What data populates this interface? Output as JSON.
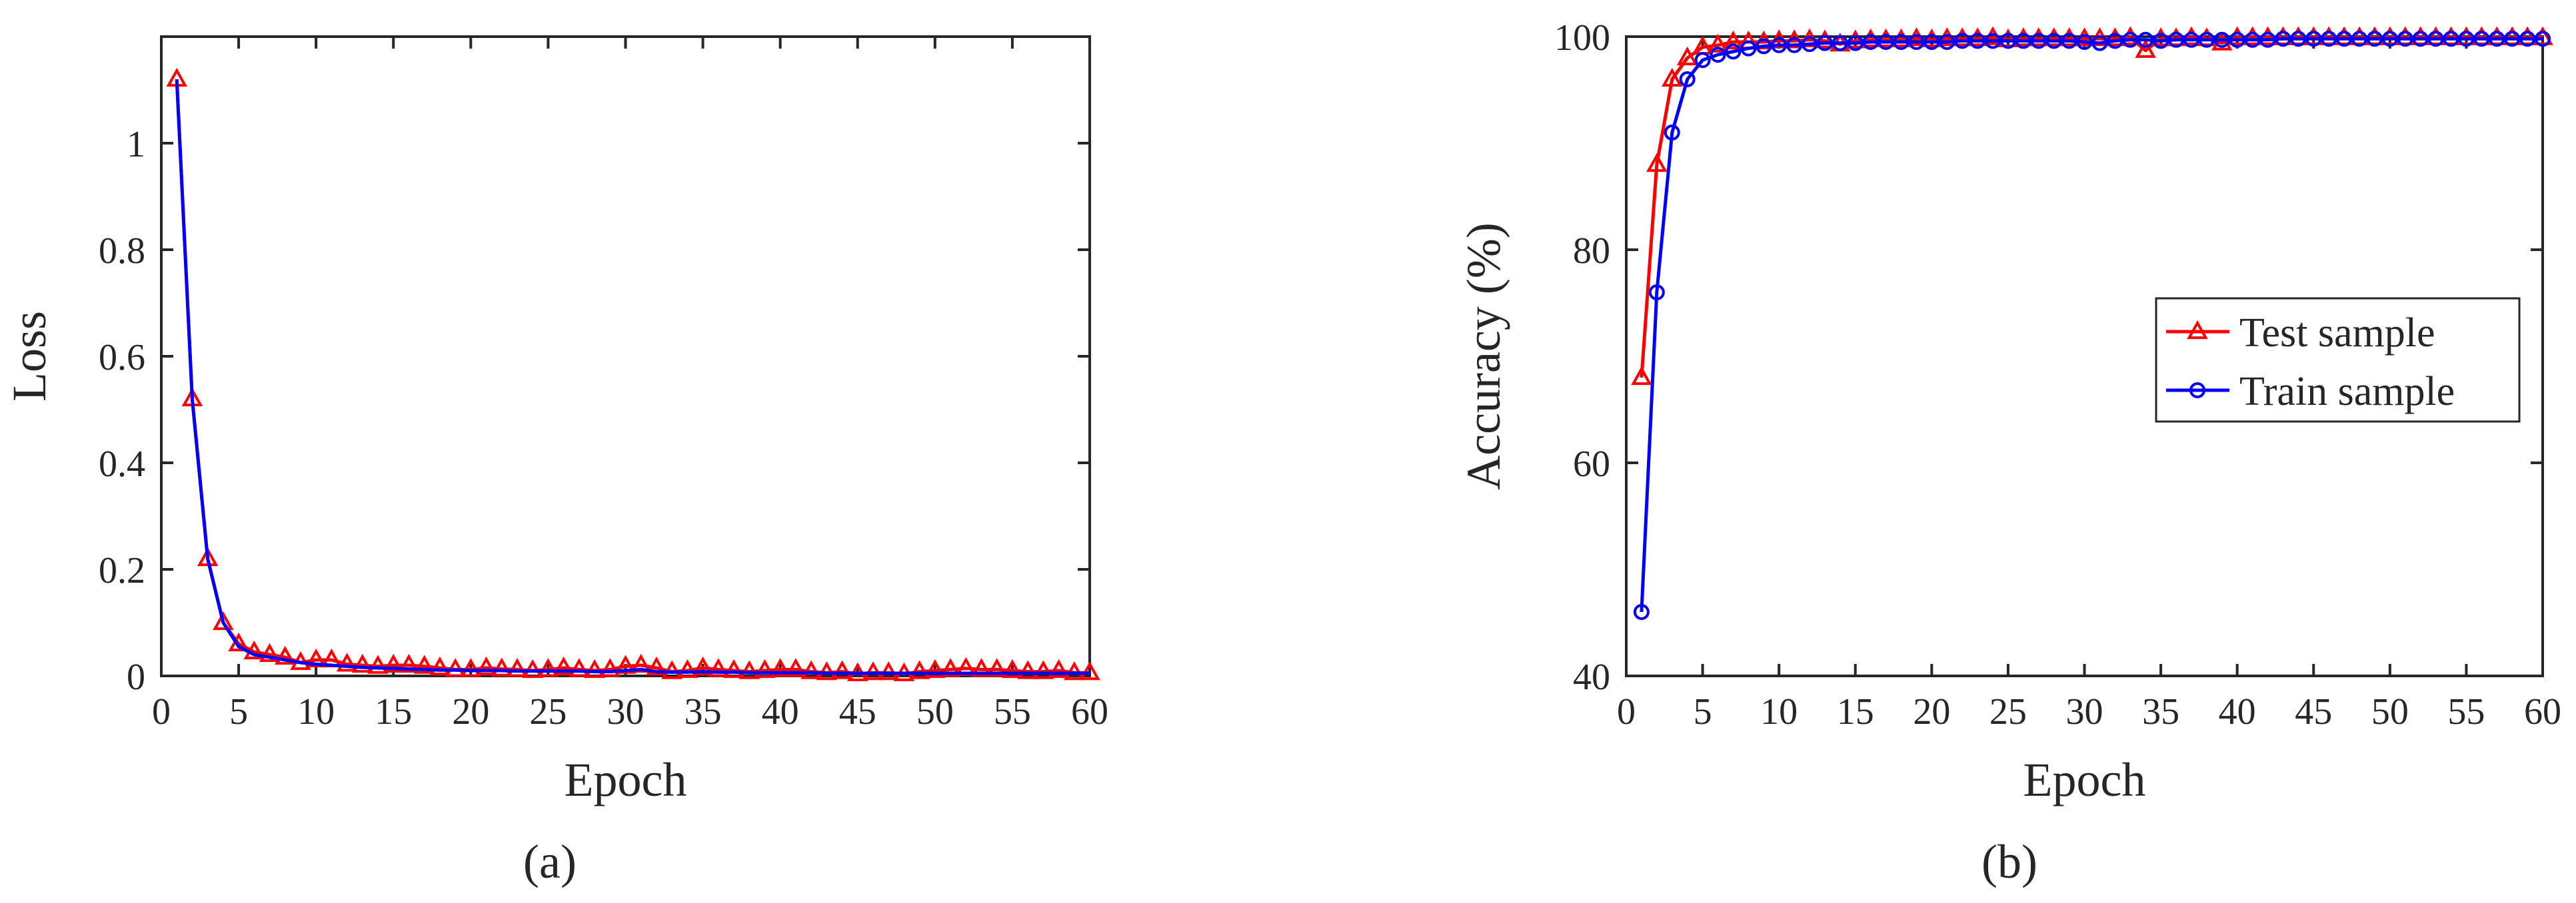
{
  "figure": {
    "panels": [
      "a",
      "b"
    ],
    "captions": [
      "(a)",
      "(b)"
    ]
  },
  "chart_data": [
    {
      "type": "line",
      "caption": "(a)",
      "xlabel": "Epoch",
      "ylabel": "Loss",
      "xlim": [
        0,
        60
      ],
      "ylim": [
        0,
        1.2
      ],
      "xticks": [
        0,
        5,
        10,
        15,
        20,
        25,
        30,
        35,
        40,
        45,
        50,
        55,
        60
      ],
      "yticks": [
        0,
        0.2,
        0.4,
        0.6,
        0.8,
        1
      ],
      "ytick_labels": [
        "0",
        "0.2",
        "0.4",
        "0.6",
        "0.8",
        "1"
      ],
      "grid": false,
      "series": [
        {
          "name": "Test sample",
          "color": "#ff0000",
          "marker": "triangle",
          "x": [
            1,
            2,
            3,
            4,
            5,
            6,
            7,
            8,
            9,
            10,
            11,
            12,
            13,
            14,
            15,
            16,
            17,
            18,
            19,
            20,
            21,
            22,
            23,
            24,
            25,
            26,
            27,
            28,
            29,
            30,
            31,
            32,
            33,
            34,
            35,
            36,
            37,
            38,
            39,
            40,
            41,
            42,
            43,
            44,
            45,
            46,
            47,
            48,
            49,
            50,
            51,
            52,
            53,
            54,
            55,
            56,
            57,
            58,
            59,
            60
          ],
          "values": [
            1.12,
            0.52,
            0.22,
            0.1,
            0.06,
            0.045,
            0.04,
            0.035,
            0.025,
            0.03,
            0.03,
            0.022,
            0.02,
            0.018,
            0.02,
            0.02,
            0.018,
            0.015,
            0.012,
            0.012,
            0.015,
            0.013,
            0.012,
            0.01,
            0.012,
            0.015,
            0.012,
            0.01,
            0.012,
            0.018,
            0.02,
            0.015,
            0.008,
            0.01,
            0.015,
            0.012,
            0.01,
            0.008,
            0.01,
            0.012,
            0.012,
            0.008,
            0.006,
            0.008,
            0.004,
            0.006,
            0.006,
            0.004,
            0.008,
            0.01,
            0.012,
            0.014,
            0.012,
            0.012,
            0.01,
            0.008,
            0.008,
            0.01,
            0.006,
            0.006
          ]
        },
        {
          "name": "Train sample",
          "color": "#0000ff",
          "marker": "none",
          "x": [
            1,
            2,
            3,
            4,
            5,
            6,
            7,
            8,
            9,
            10,
            11,
            12,
            13,
            14,
            15,
            16,
            17,
            18,
            19,
            20,
            21,
            22,
            23,
            24,
            25,
            26,
            27,
            28,
            29,
            30,
            31,
            32,
            33,
            34,
            35,
            36,
            37,
            38,
            39,
            40,
            41,
            42,
            43,
            44,
            45,
            46,
            47,
            48,
            49,
            50,
            51,
            52,
            53,
            54,
            55,
            56,
            57,
            58,
            59,
            60
          ],
          "values": [
            1.12,
            0.52,
            0.22,
            0.1,
            0.055,
            0.04,
            0.035,
            0.03,
            0.025,
            0.022,
            0.02,
            0.018,
            0.016,
            0.015,
            0.014,
            0.013,
            0.012,
            0.011,
            0.011,
            0.01,
            0.01,
            0.01,
            0.009,
            0.009,
            0.009,
            0.009,
            0.009,
            0.008,
            0.008,
            0.01,
            0.012,
            0.008,
            0.007,
            0.007,
            0.008,
            0.007,
            0.007,
            0.006,
            0.006,
            0.006,
            0.006,
            0.006,
            0.005,
            0.005,
            0.005,
            0.005,
            0.005,
            0.005,
            0.005,
            0.005,
            0.005,
            0.005,
            0.005,
            0.005,
            0.005,
            0.005,
            0.005,
            0.005,
            0.005,
            0.005
          ]
        }
      ]
    },
    {
      "type": "line",
      "caption": "(b)",
      "xlabel": "Epoch",
      "ylabel": "Accuracy (%)",
      "xlim": [
        0,
        60
      ],
      "ylim": [
        40,
        100
      ],
      "xticks": [
        0,
        5,
        10,
        15,
        20,
        25,
        30,
        35,
        40,
        45,
        50,
        55,
        60
      ],
      "yticks": [
        40,
        60,
        80,
        100
      ],
      "ytick_labels": [
        "40",
        "60",
        "80",
        "100"
      ],
      "grid": false,
      "legend": {
        "placement": "center-right"
      },
      "series": [
        {
          "name": "Test sample",
          "color": "#ff0000",
          "marker": "triangle",
          "x": [
            1,
            2,
            3,
            4,
            5,
            6,
            7,
            8,
            9,
            10,
            11,
            12,
            13,
            14,
            15,
            16,
            17,
            18,
            19,
            20,
            21,
            22,
            23,
            24,
            25,
            26,
            27,
            28,
            29,
            30,
            31,
            32,
            33,
            34,
            35,
            36,
            37,
            38,
            39,
            40,
            41,
            42,
            43,
            44,
            45,
            46,
            47,
            48,
            49,
            50,
            51,
            52,
            53,
            54,
            55,
            56,
            57,
            58,
            59,
            60
          ],
          "values": [
            68,
            88,
            96,
            98,
            99,
            99.2,
            99.5,
            99.5,
            99.5,
            99.6,
            99.6,
            99.7,
            99.6,
            99.3,
            99.6,
            99.7,
            99.7,
            99.7,
            99.8,
            99.7,
            99.8,
            99.8,
            99.8,
            99.9,
            99.7,
            99.8,
            99.8,
            99.8,
            99.8,
            99.8,
            99.8,
            99.8,
            99.9,
            98.7,
            99.8,
            99.8,
            99.9,
            99.8,
            99.4,
            99.9,
            99.9,
            99.9,
            99.9,
            99.9,
            99.9,
            99.9,
            99.9,
            99.9,
            99.9,
            99.9,
            99.9,
            99.9,
            99.9,
            99.9,
            99.9,
            99.9,
            99.9,
            99.9,
            99.9,
            99.9
          ]
        },
        {
          "name": "Train sample",
          "color": "#0000ff",
          "marker": "circle",
          "x": [
            1,
            2,
            3,
            4,
            5,
            6,
            7,
            8,
            9,
            10,
            11,
            12,
            13,
            14,
            15,
            16,
            17,
            18,
            19,
            20,
            21,
            22,
            23,
            24,
            25,
            26,
            27,
            28,
            29,
            30,
            31,
            32,
            33,
            34,
            35,
            36,
            37,
            38,
            39,
            40,
            41,
            42,
            43,
            44,
            45,
            46,
            47,
            48,
            49,
            50,
            51,
            52,
            53,
            54,
            55,
            56,
            57,
            58,
            59,
            60
          ],
          "values": [
            46,
            76,
            91,
            96,
            97.8,
            98.3,
            98.6,
            98.9,
            99.1,
            99.2,
            99.2,
            99.3,
            99.4,
            99.4,
            99.4,
            99.5,
            99.5,
            99.5,
            99.5,
            99.5,
            99.5,
            99.6,
            99.6,
            99.6,
            99.6,
            99.6,
            99.6,
            99.6,
            99.6,
            99.5,
            99.4,
            99.6,
            99.7,
            99.7,
            99.6,
            99.7,
            99.7,
            99.7,
            99.7,
            99.7,
            99.7,
            99.7,
            99.8,
            99.8,
            99.8,
            99.8,
            99.8,
            99.8,
            99.8,
            99.8,
            99.8,
            99.8,
            99.8,
            99.8,
            99.8,
            99.8,
            99.8,
            99.8,
            99.8,
            99.8
          ]
        }
      ]
    }
  ]
}
